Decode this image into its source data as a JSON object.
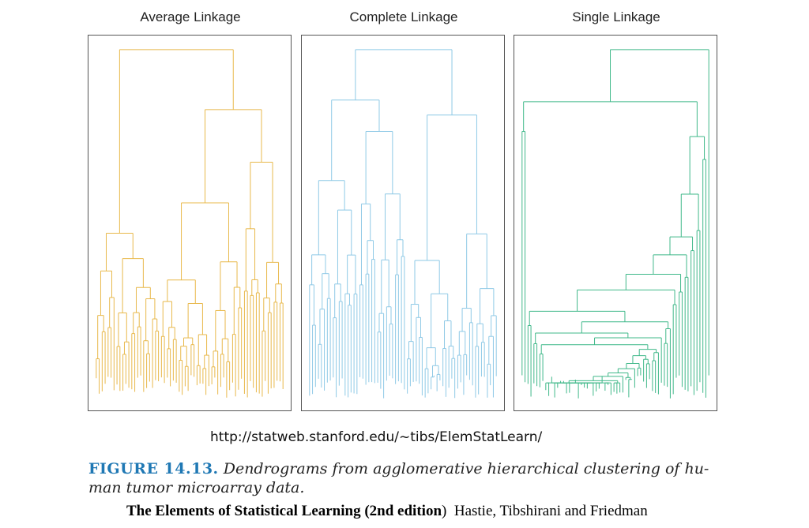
{
  "panels": [
    {
      "title": "Average Linkage",
      "color": "#e8b84a"
    },
    {
      "title": "Complete Linkage",
      "color": "#8ec9e6"
    },
    {
      "title": "Single Linkage",
      "color": "#3fb889"
    }
  ],
  "url": "http://statweb.stanford.edu/~tibs/ElemStatLearn/",
  "caption": {
    "label": "FIGURE 14.13.",
    "text": "Dendrograms from agglomerative hierarchical clustering of hu- man tumor microarray data."
  },
  "footer": {
    "book": "The Elements of Statistical Learning (2nd edition",
    "paren": ")",
    "authors": "Hastie, Tibshirani and Friedman"
  }
}
